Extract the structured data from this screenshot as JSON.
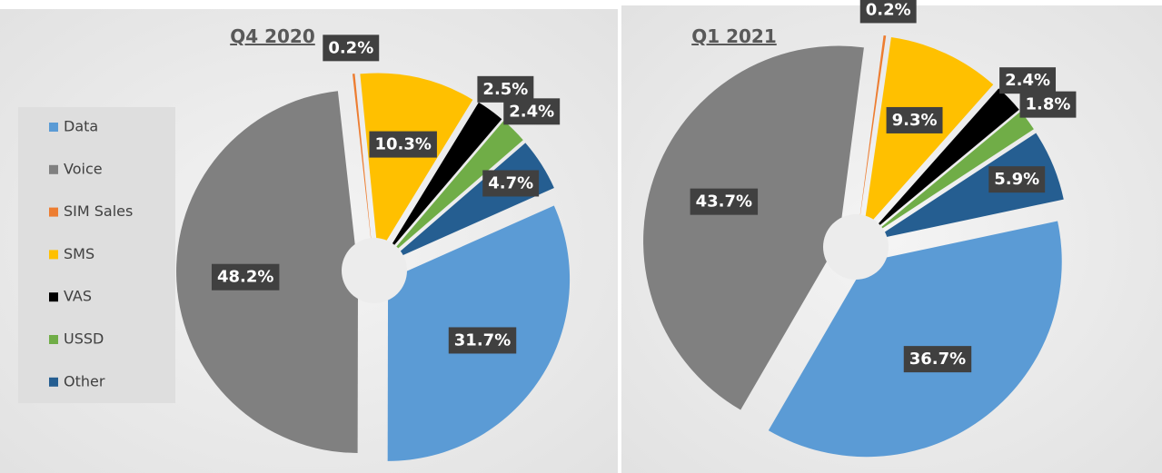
{
  "chart_data": [
    {
      "type": "pie",
      "title": "Q4 2020",
      "categories": [
        "Data",
        "Voice",
        "SIM Sales",
        "SMS",
        "VAS",
        "USSD",
        "Other"
      ],
      "values": [
        31.7,
        48.2,
        0.2,
        10.3,
        2.5,
        2.4,
        4.7
      ],
      "value_labels": [
        "31.7%",
        "48.2%",
        "0.2%",
        "10.3%",
        "2.5%",
        "2.4%",
        "4.7%"
      ],
      "colors": [
        "#5b9bd5",
        "#808080",
        "#ed7d31",
        "#ffc000",
        "#000000",
        "#70ad47",
        "#255e91"
      ],
      "legend": "left"
    },
    {
      "type": "pie",
      "title": "Q1 2021",
      "values": [
        36.7,
        43.7,
        0.2,
        9.3,
        2.4,
        1.8,
        5.9
      ],
      "value_labels": [
        "36.7%",
        "43.7%",
        "0.2%",
        "9.3%",
        "2.4%",
        "1.8%",
        "5.9%"
      ],
      "colors": [
        "#5b9bd5",
        "#808080",
        "#ed7d31",
        "#ffc000",
        "#000000",
        "#70ad47",
        "#255e91"
      ]
    }
  ]
}
